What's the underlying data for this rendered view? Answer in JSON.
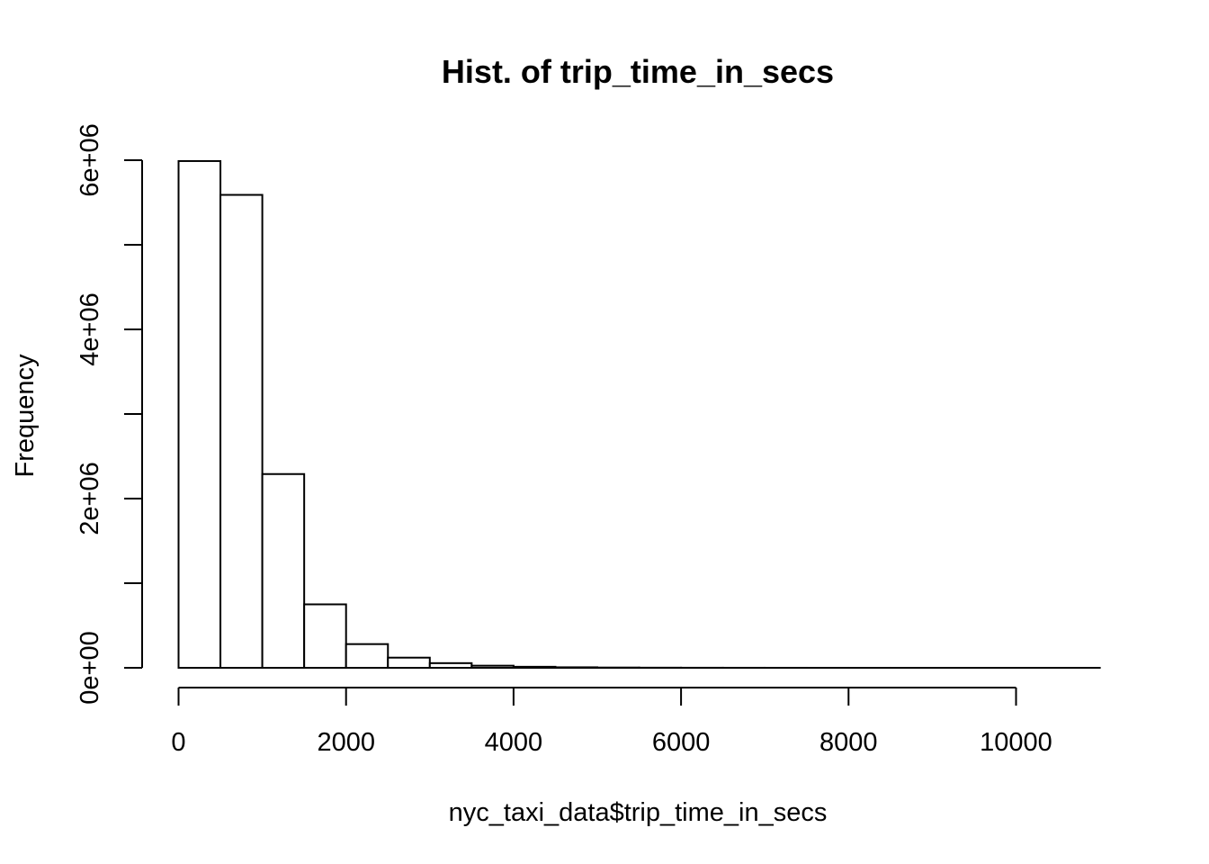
{
  "chart_data": {
    "type": "bar",
    "title": "Hist. of trip_time_in_secs",
    "xlabel": "nyc_taxi_data$trip_time_in_secs",
    "ylabel": "Frequency",
    "bin_edges": [
      0,
      500,
      1000,
      1500,
      2000,
      2500,
      3000,
      3500,
      4000,
      4500,
      5000,
      5500,
      6000,
      6500,
      7000,
      7500,
      8000,
      8500,
      9000,
      9500,
      10000,
      10500,
      11000
    ],
    "values": [
      5990000,
      5590000,
      2290000,
      750000,
      280000,
      120000,
      55000,
      25000,
      12000,
      6000,
      3000,
      1500,
      800,
      400,
      200,
      100,
      60,
      30,
      15,
      8,
      4,
      2
    ],
    "xlim": [
      0,
      11000
    ],
    "ylim": [
      0,
      6000000
    ],
    "x_ticks": [
      0,
      2000,
      4000,
      6000,
      8000,
      10000
    ],
    "x_tick_labels": [
      "0",
      "2000",
      "4000",
      "6000",
      "8000",
      "10000"
    ],
    "y_ticks": [
      0,
      1000000,
      2000000,
      3000000,
      4000000,
      5000000,
      6000000
    ],
    "y_tick_labels": [
      "0e+00",
      "",
      "2e+06",
      "",
      "4e+06",
      "",
      "6e+06"
    ],
    "grid": false,
    "bar_fill": "#ffffff",
    "bar_stroke": "#000000"
  }
}
